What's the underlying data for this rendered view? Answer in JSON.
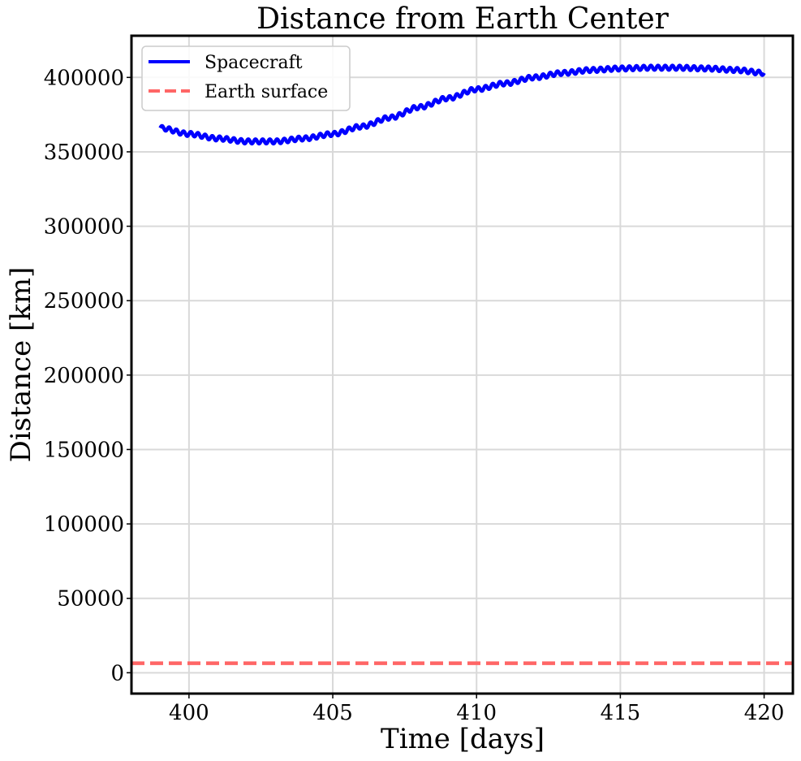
{
  "chart_data": {
    "type": "line",
    "title": "Distance from Earth Center",
    "xlabel": "Time [days]",
    "ylabel": "Distance [km]",
    "xlim": [
      398,
      421
    ],
    "ylim": [
      -14000,
      428000
    ],
    "xticks": [
      400,
      405,
      410,
      415,
      420
    ],
    "yticks": [
      0,
      50000,
      100000,
      150000,
      200000,
      250000,
      300000,
      350000,
      400000
    ],
    "grid": true,
    "legend_position": "upper-left",
    "series": [
      {
        "name": "Spacecraft",
        "color": "#0000ff",
        "style": "solid",
        "oscillation_amplitude_km": 1500,
        "oscillation_period_days": 0.25,
        "x": [
          399,
          400,
          401,
          402,
          403,
          404,
          405,
          406,
          407,
          408,
          409,
          410,
          411,
          412,
          413,
          414,
          415,
          416,
          417,
          418,
          419,
          420
        ],
        "y": [
          366000,
          362000,
          359000,
          357000,
          357000,
          359000,
          362000,
          367000,
          373000,
          380000,
          386000,
          392000,
          396000,
          400000,
          403000,
          405000,
          406000,
          406500,
          406500,
          406000,
          405000,
          403000
        ]
      },
      {
        "name": "Earth surface",
        "color": "#ff6666",
        "style": "dashed",
        "x": [
          398,
          421
        ],
        "y": [
          6371,
          6371
        ]
      }
    ]
  }
}
